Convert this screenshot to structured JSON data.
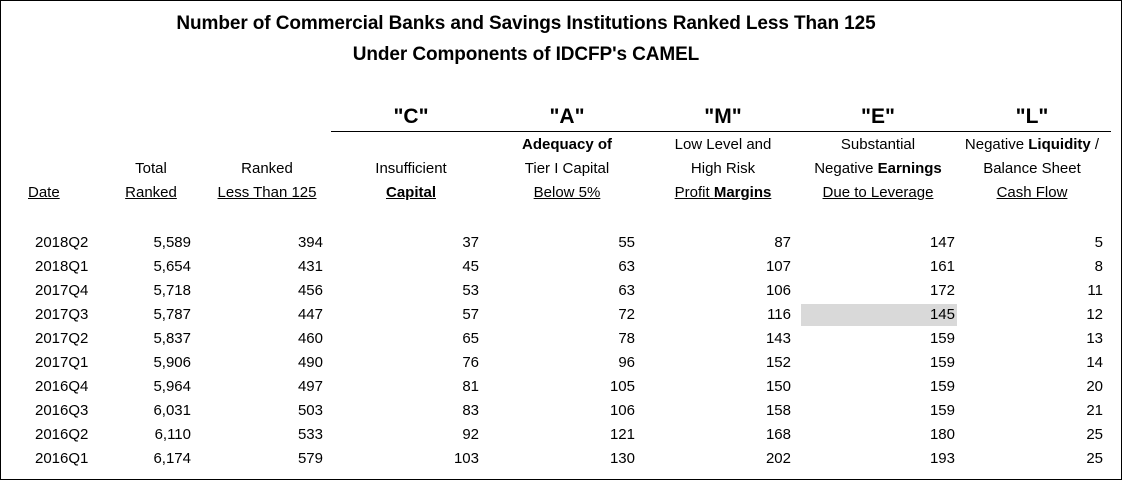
{
  "title": {
    "line1": "Number of Commercial Banks and Savings Institutions Ranked Less Than 125",
    "line2": "Under Components of IDCFP's CAMEL"
  },
  "components": [
    {
      "letter": "\"C\"",
      "lines": [
        [
          "",
          ""
        ],
        [
          "Insufficient",
          ""
        ],
        [
          "",
          "Capital"
        ]
      ]
    },
    {
      "letter": "\"A\"",
      "lines": [
        [
          "",
          "Adequacy of"
        ],
        [
          "Tier I Capital",
          ""
        ],
        [
          "Below 5%",
          ""
        ]
      ]
    },
    {
      "letter": "\"M\"",
      "lines": [
        [
          "Low Level and",
          ""
        ],
        [
          "High Risk",
          ""
        ],
        [
          "Profit ",
          "Margins"
        ]
      ]
    },
    {
      "letter": "\"E\"",
      "lines": [
        [
          "Substantial",
          ""
        ],
        [
          "Negative ",
          "Earnings"
        ],
        [
          "Due to Leverage",
          ""
        ]
      ]
    },
    {
      "letter": "\"L\"",
      "lines": [
        [
          "Negative ",
          "Liquidity",
          " /"
        ],
        [
          "Balance Sheet",
          ""
        ],
        [
          "Cash Flow",
          ""
        ]
      ]
    }
  ],
  "base_columns": {
    "date": "Date",
    "total_line1": "Total",
    "total_line2": "Ranked",
    "ranked_line1": "Ranked",
    "ranked_line2": "Less Than 125"
  },
  "rows": [
    [
      "2018Q2",
      "5,589",
      "394",
      "37",
      "55",
      "87",
      "147",
      "5"
    ],
    [
      "2018Q1",
      "5,654",
      "431",
      "45",
      "63",
      "107",
      "161",
      "8"
    ],
    [
      "2017Q4",
      "5,718",
      "456",
      "53",
      "63",
      "106",
      "172",
      "11"
    ],
    [
      "2017Q3",
      "5,787",
      "447",
      "57",
      "72",
      "116",
      "145",
      "12"
    ],
    [
      "2017Q2",
      "5,837",
      "460",
      "65",
      "78",
      "143",
      "159",
      "13"
    ],
    [
      "2017Q1",
      "5,906",
      "490",
      "76",
      "96",
      "152",
      "159",
      "14"
    ],
    [
      "2016Q4",
      "5,964",
      "497",
      "81",
      "105",
      "150",
      "159",
      "20"
    ],
    [
      "2016Q3",
      "6,031",
      "503",
      "83",
      "106",
      "158",
      "159",
      "21"
    ],
    [
      "2016Q2",
      "6,110",
      "533",
      "92",
      "121",
      "168",
      "180",
      "25"
    ],
    [
      "2016Q1",
      "6,174",
      "579",
      "103",
      "130",
      "202",
      "193",
      "25"
    ]
  ],
  "highlight": {
    "row": 3,
    "column": 6,
    "color": "#d9d9d9"
  }
}
